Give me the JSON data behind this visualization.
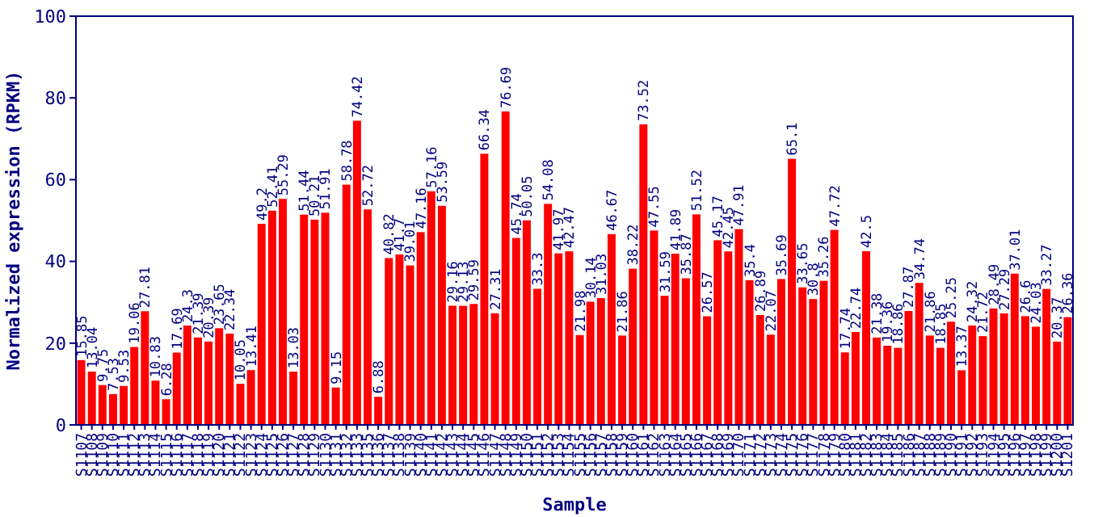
{
  "chart_data": {
    "type": "bar",
    "xlabel": "Sample",
    "ylabel": "Normalized expression (RPKM)",
    "categories": [
      "S1107",
      "S1108",
      "S1109",
      "S1110",
      "S1111",
      "S1112",
      "S1113",
      "S1114",
      "S1115",
      "S1116",
      "S1117",
      "S1118",
      "S1119",
      "S1120",
      "S1121",
      "S1122",
      "S1123",
      "S1124",
      "S1125",
      "S1126",
      "S1127",
      "S1128",
      "S1129",
      "S1130",
      "S1131",
      "S1132",
      "S1133",
      "S1135",
      "S1136",
      "S1137",
      "S1138",
      "S1139",
      "S1140",
      "S1141",
      "S1142",
      "S1143",
      "S1144",
      "S1145",
      "S1146",
      "S1147",
      "S1148",
      "S1149",
      "S1150",
      "S1151",
      "S1152",
      "S1153",
      "S1154",
      "S1155",
      "S1156",
      "S1157",
      "S1158",
      "S1159",
      "S1160",
      "S1161",
      "S1162",
      "S1163",
      "S1164",
      "S1165",
      "S1166",
      "S1167",
      "S1168",
      "S1169",
      "S1170",
      "S1171",
      "S1172",
      "S1173",
      "S1174",
      "S1175",
      "S1176",
      "S1177",
      "S1178",
      "S1179",
      "S1180",
      "S1181",
      "S1182",
      "S1183",
      "S1184",
      "S1185",
      "S1186",
      "S1187",
      "S1188",
      "S1189",
      "S1190",
      "S1191",
      "S1192",
      "S1193",
      "S1194",
      "S1195",
      "S1196",
      "S1197",
      "S1198",
      "S1199",
      "S1200",
      "S1201"
    ],
    "values": [
      15.85,
      13.04,
      9.75,
      7.53,
      9.53,
      19.06,
      27.81,
      10.83,
      6.28,
      17.69,
      24.3,
      21.39,
      20.39,
      23.65,
      22.34,
      10.05,
      13.41,
      49.2,
      52.41,
      55.29,
      13.03,
      51.44,
      50.21,
      51.91,
      9.15,
      58.78,
      74.42,
      52.72,
      6.88,
      40.82,
      41.7,
      39.01,
      47.16,
      57.16,
      53.59,
      29.16,
      29.13,
      29.59,
      66.34,
      27.31,
      76.69,
      45.74,
      50.05,
      33.3,
      54.08,
      41.97,
      42.47,
      21.98,
      30.14,
      31.03,
      46.67,
      21.86,
      38.22,
      73.52,
      47.55,
      31.59,
      41.89,
      35.87,
      51.52,
      26.57,
      45.17,
      42.45,
      47.91,
      35.4,
      26.89,
      22.07,
      35.69,
      65.1,
      33.65,
      30.8,
      35.26,
      47.72,
      17.74,
      22.74,
      42.5,
      21.38,
      19.36,
      18.86,
      27.87,
      34.74,
      21.86,
      18.85,
      25.25,
      13.37,
      24.32,
      21.72,
      28.49,
      27.29,
      37.01,
      26.6,
      24.03,
      33.27,
      20.37,
      26.36
    ],
    "color": "#ff0000",
    "data_labels": true,
    "ylim": [
      0,
      100
    ],
    "yticks": [
      0,
      20,
      40,
      60,
      80,
      100
    ],
    "grid": false
  }
}
